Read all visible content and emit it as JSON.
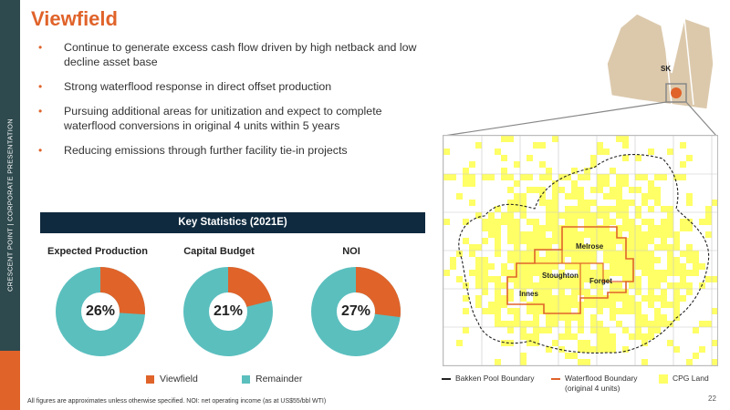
{
  "sidebar": {
    "vertical_text": "CRESCENT POINT   |   CORPORATE PRESENTATION"
  },
  "title": "Viewfield",
  "bullets": [
    "Continue to generate excess cash flow driven by high netback and low decline asset base",
    "Strong waterflood response in direct offset production",
    "Pursuing additional areas for unitization and expect to complete waterflood conversions in original 4 units within 5 years",
    "Reducing emissions through further facility tie-in projects"
  ],
  "bullet_marker": "•",
  "stats_title": "Key Statistics (2021E)",
  "colors": {
    "accent": "#e0632a",
    "remainder": "#5bbfbe",
    "navy": "#0f2a3f",
    "cpg_land": "#ffff66"
  },
  "donuts": [
    {
      "label": "Expected Production",
      "percent_text": "26%",
      "value": 0.26
    },
    {
      "label": "Capital Budget",
      "percent_text": "21%",
      "value": 0.21
    },
    {
      "label": "NOI",
      "percent_text": "27%",
      "value": 0.27
    }
  ],
  "legend": {
    "viewfield": "Viewfield",
    "remainder": "Remainder"
  },
  "footnote": "All figures are approximates unless otherwise specified. NOI: net operating income (as at US$55/bbl WTI)",
  "page_number": "22",
  "map": {
    "province_label": "SK",
    "units": [
      "Melrose",
      "Stoughton",
      "Forget",
      "Innes"
    ],
    "legend": {
      "bakken": "Bakken Pool Boundary",
      "waterflood_line1": "Waterflood Boundary",
      "waterflood_line2": "(original 4 units)",
      "cpg": "CPG Land"
    }
  }
}
